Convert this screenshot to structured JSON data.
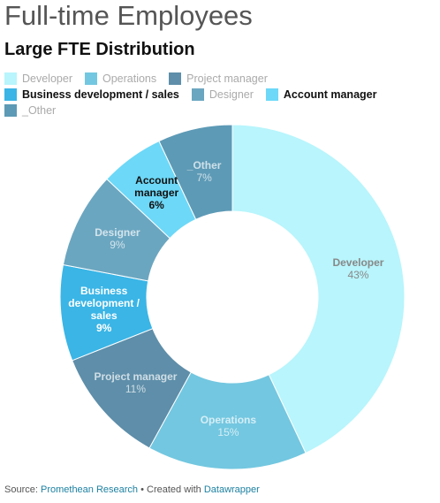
{
  "chart_data": {
    "type": "donut",
    "title": "Full-time Employees",
    "subtitle": "Large FTE Distribution",
    "categories": [
      "Developer",
      "Operations",
      "Project manager",
      "Business development / sales",
      "Designer",
      "Account manager",
      "_Other"
    ],
    "values": [
      43,
      15,
      11,
      9,
      9,
      6,
      7
    ],
    "value_labels": [
      "43%",
      "15%",
      "11%",
      "9%",
      "9%",
      "6%",
      "7%"
    ],
    "colors": [
      "#b8f5fc",
      "#73c7e0",
      "#5e8ea9",
      "#3ab5e6",
      "#6ba6c0",
      "#6dd8f8",
      "#5d9ab6"
    ],
    "highlighted": [
      false,
      false,
      false,
      true,
      false,
      true,
      false
    ],
    "source_label": "Source:",
    "source": "Promethean Research",
    "credit_label": "• Created with",
    "credit": "Datawrapper"
  }
}
